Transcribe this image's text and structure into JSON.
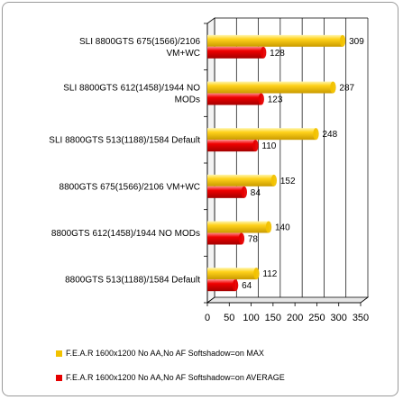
{
  "chart_data": {
    "type": "bar",
    "orientation": "horizontal",
    "style": "3d-cylinder",
    "categories": [
      [
        "SLI 8800GTS 675(1566)/2106",
        "VM+WC"
      ],
      [
        "SLI 8800GTS 612(1458)/1944 NO",
        "MODs"
      ],
      [
        "SLI 8800GTS 513(1188)/1584 Default"
      ],
      [
        "8800GTS 675(1566)/2106 VM+WC"
      ],
      [
        "8800GTS 612(1458)/1944 NO MODs"
      ],
      [
        "8800GTS 513(1188)/1584 Default"
      ]
    ],
    "series": [
      {
        "name": "F.E.A.R 1600x1200  No AA,No  AF Softshadow=on  MAX",
        "color": "#f2c200",
        "values": [
          309,
          287,
          248,
          152,
          140,
          112
        ]
      },
      {
        "name": "F.E.A.R 1600x1200 No AA,No  AF Softshadow=on  AVERAGE",
        "color": "#e60000",
        "values": [
          128,
          123,
          110,
          84,
          78,
          64
        ]
      }
    ],
    "xlim": [
      0,
      350
    ],
    "xticks": [
      0,
      50,
      100,
      150,
      200,
      250,
      300,
      350
    ],
    "grid": true,
    "legend_position": "bottom"
  }
}
